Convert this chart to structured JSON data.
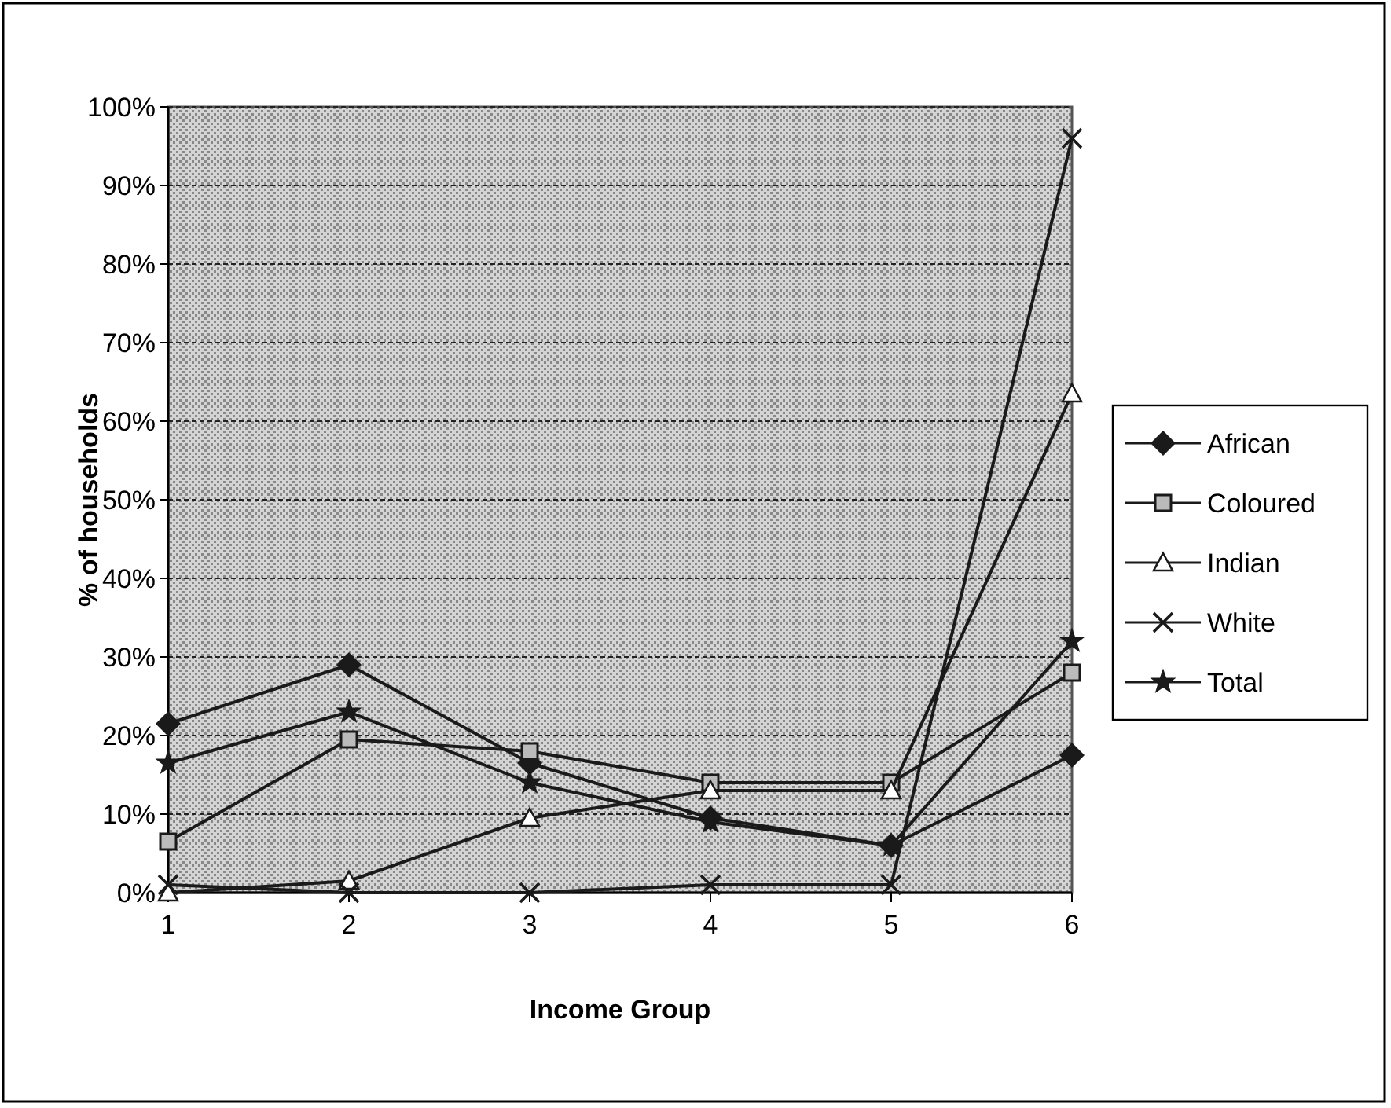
{
  "chart_data": {
    "type": "line",
    "xlabel": "Income Group",
    "ylabel": "% of households",
    "x": [
      1,
      2,
      3,
      4,
      5,
      6
    ],
    "xlim": [
      1,
      6
    ],
    "xticks": [
      1,
      2,
      3,
      4,
      5,
      6
    ],
    "ylim": [
      0,
      100
    ],
    "yticks": [
      {
        "value": 0,
        "label": "0%"
      },
      {
        "value": 10,
        "label": "10%"
      },
      {
        "value": 20,
        "label": "20%"
      },
      {
        "value": 30,
        "label": "30%"
      },
      {
        "value": 40,
        "label": "40%"
      },
      {
        "value": 50,
        "label": "50%"
      },
      {
        "value": 60,
        "label": "60%"
      },
      {
        "value": 70,
        "label": "70%"
      },
      {
        "value": 80,
        "label": "80%"
      },
      {
        "value": 90,
        "label": "90%"
      },
      {
        "value": 100,
        "label": "100%"
      }
    ],
    "grid": "y",
    "legend": "right",
    "series": [
      {
        "name": "African",
        "color": "#1a1a1a",
        "marker": "diamond",
        "values": [
          21.5,
          29,
          16.5,
          9.5,
          6,
          17.5
        ]
      },
      {
        "name": "Coloured",
        "color": "#1a1a1a",
        "marker": "square",
        "values": [
          6.5,
          19.5,
          18,
          14,
          14,
          28
        ]
      },
      {
        "name": "Indian",
        "color": "#1a1a1a",
        "marker": "triangle",
        "values": [
          0,
          1.5,
          9.5,
          13,
          13,
          63.5
        ]
      },
      {
        "name": "White",
        "color": "#1a1a1a",
        "marker": "cross",
        "values": [
          1,
          0,
          0,
          1,
          1,
          96
        ]
      },
      {
        "name": "Total",
        "color": "#1a1a1a",
        "marker": "star",
        "values": [
          16.5,
          23,
          14,
          9,
          6,
          32
        ]
      }
    ]
  }
}
